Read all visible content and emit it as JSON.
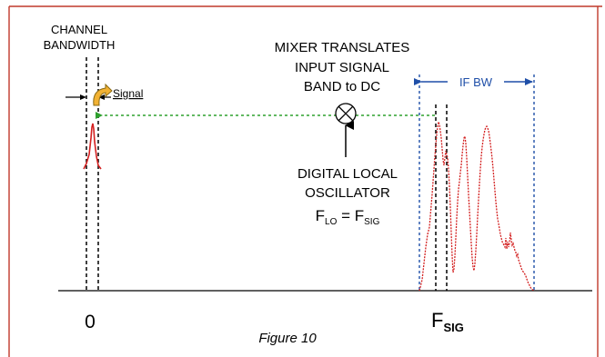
{
  "labels": {
    "channel_bandwidth_line1": "CHANNEL",
    "channel_bandwidth_line2": "BANDWIDTH",
    "signal": "Signal",
    "mixer_line1": "MIXER TRANSLATES",
    "mixer_line2": "INPUT SIGNAL",
    "mixer_line3": "BAND to DC",
    "if_bw": "IF BW",
    "dlo_line1": "DIGITAL LOCAL",
    "dlo_line2": "OSCILLATOR",
    "eq_f1": "F",
    "eq_sub1": "LO",
    "eq_mid": " = F",
    "eq_sub2": "SIG",
    "zero": "0",
    "fsig_f": "F",
    "fsig_sub": "SIG",
    "caption": "Figure 10"
  },
  "icons": {
    "mixer": "mixer-multiply-icon",
    "signal_arrow": "curved-arrow-icon"
  },
  "colors": {
    "frame": "#c0392b",
    "signal_trace": "#d32020",
    "translation_arrow": "#2ea02e",
    "if_bw": "#1f4fa8",
    "axis": "#000000",
    "signal_arrow_fill": "#f2b233"
  }
}
